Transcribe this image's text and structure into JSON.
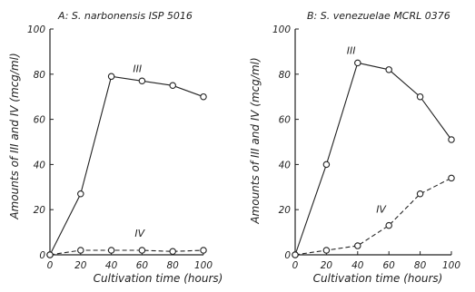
{
  "chart_data": [
    {
      "type": "line",
      "title": "A: S. narbonensis ISP 5016",
      "xlabel": "Cultivation time (hours)",
      "ylabel": "Amounts of III and IV (mcg/ml)",
      "xlim": [
        0,
        100
      ],
      "ylim": [
        0,
        100
      ],
      "xticks": [
        "0",
        "20",
        "40",
        "60",
        "80",
        "100"
      ],
      "yticks": [
        "0",
        "20",
        "40",
        "60",
        "80",
        "100"
      ],
      "x": [
        0,
        20,
        40,
        60,
        80,
        100
      ],
      "series": [
        {
          "name": "III",
          "values": [
            0,
            27,
            79,
            77,
            75,
            70
          ],
          "style": "solid"
        },
        {
          "name": "IV",
          "values": [
            0,
            2,
            2,
            2,
            1.5,
            2
          ],
          "style": "dashed"
        }
      ],
      "grid": false
    },
    {
      "type": "line",
      "title": "B: S. venezuelae MCRL 0376",
      "xlabel": "Cultivation time (hours)",
      "ylabel": "Amounts of III and IV (mcg/ml)",
      "xlim": [
        0,
        100
      ],
      "ylim": [
        0,
        100
      ],
      "xticks": [
        "0",
        "20",
        "40",
        "60",
        "80",
        "100"
      ],
      "yticks": [
        "0",
        "20",
        "40",
        "60",
        "80",
        "100"
      ],
      "x": [
        0,
        20,
        40,
        60,
        80,
        100
      ],
      "series": [
        {
          "name": "III",
          "values": [
            0,
            40,
            85,
            82,
            70,
            51
          ],
          "style": "solid"
        },
        {
          "name": "IV",
          "values": [
            0,
            2,
            4,
            13,
            27,
            34
          ],
          "style": "dashed"
        }
      ],
      "grid": false
    }
  ]
}
